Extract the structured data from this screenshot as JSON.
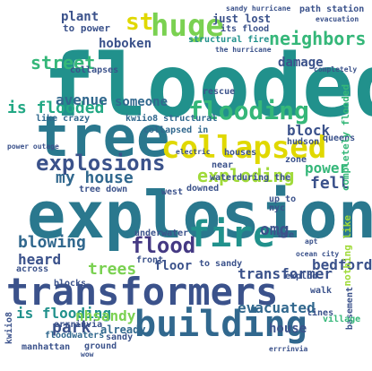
{
  "palette": {
    "dark_purple": "#440154",
    "indigo": "#3b528b",
    "blue": "#31688e",
    "teal": "#21918c",
    "green": "#35b779",
    "lime": "#5ec962",
    "yellow": "#e0e000"
  },
  "words": [
    {
      "text": "flooded",
      "color": "#21918c"
    },
    {
      "text": "tree",
      "color": "#2a788e"
    },
    {
      "text": "explosion",
      "color": "#2a788e"
    },
    {
      "text": "transformers",
      "color": "#3b528b"
    },
    {
      "text": "building",
      "color": "#31688e"
    },
    {
      "text": "fire",
      "color": "#21918c"
    },
    {
      "text": "collapsed",
      "color": "#e0d800"
    },
    {
      "text": "flooding",
      "color": "#35b779"
    },
    {
      "text": "huge",
      "color": "#7ad151"
    },
    {
      "text": "explosions",
      "color": "#3b528b"
    },
    {
      "text": "st",
      "color": "#e0d800"
    },
    {
      "text": "neighbors",
      "color": "#35b779"
    },
    {
      "text": "plant",
      "color": "#3b528b"
    },
    {
      "text": "hoboken",
      "color": "#3b528b"
    },
    {
      "text": "damage",
      "color": "#3b528b"
    },
    {
      "text": "street",
      "color": "#35b779"
    },
    {
      "text": "is flooded",
      "color": "#22a884"
    },
    {
      "text": "avenue",
      "color": "#31688e"
    },
    {
      "text": "someone",
      "color": "#31688e"
    },
    {
      "text": "block",
      "color": "#3b528b"
    },
    {
      "text": "power",
      "color": "#35b779"
    },
    {
      "text": "my house",
      "color": "#31688e"
    },
    {
      "text": "exploding",
      "color": "#a0da39"
    },
    {
      "text": "fell",
      "color": "#3b528b"
    },
    {
      "text": "omg",
      "color": "#3b528b"
    },
    {
      "text": "blowing",
      "color": "#31688e"
    },
    {
      "text": "flood",
      "color": "#443983"
    },
    {
      "text": "heard",
      "color": "#3b528b"
    },
    {
      "text": "trees",
      "color": "#7ad151"
    },
    {
      "text": "floor",
      "color": "#3b528b"
    },
    {
      "text": "transformer",
      "color": "#3b528b"
    },
    {
      "text": "bedford",
      "color": "#3b528b"
    },
    {
      "text": "is flooding",
      "color": "#21918c"
    },
    {
      "text": "park",
      "color": "#3b528b"
    },
    {
      "text": "nhsandy",
      "color": "#7ad151"
    },
    {
      "text": "evacuated",
      "color": "#31688e"
    },
    {
      "text": "house",
      "color": "#3b528b"
    },
    {
      "text": "already",
      "color": "#31688e"
    },
    {
      "text": "just lost",
      "color": "#3b528b"
    },
    {
      "text": "to power",
      "color": "#3b528b"
    },
    {
      "text": "collapses",
      "color": "#3b528b"
    },
    {
      "text": "like crazy",
      "color": "#31688e"
    },
    {
      "text": "kwiio8 structural",
      "color": "#31688e"
    },
    {
      "text": "collapsed in",
      "color": "#31688e"
    },
    {
      "text": "its flood",
      "color": "#3b528b"
    },
    {
      "text": "structural fire",
      "color": "#21918c"
    },
    {
      "text": "path station",
      "color": "#3b528b"
    },
    {
      "text": "queens",
      "color": "#3b528b"
    },
    {
      "text": "completely flooded",
      "color": "#35b779"
    },
    {
      "text": "hudson",
      "color": "#3b528b"
    },
    {
      "text": "nyc",
      "color": "#3b528b"
    },
    {
      "text": "up to",
      "color": "#3b528b"
    },
    {
      "text": "nothing like",
      "color": "#a0da39"
    },
    {
      "text": "basement",
      "color": "#3b528b"
    },
    {
      "text": "village",
      "color": "#35b779"
    },
    {
      "text": "lines",
      "color": "#3b528b"
    },
    {
      "text": "walk",
      "color": "#3b528b"
    },
    {
      "text": "manhattan",
      "color": "#3b528b"
    },
    {
      "text": "floodwaters",
      "color": "#31688e"
    },
    {
      "text": "errrinvia",
      "color": "#3b528b"
    },
    {
      "text": "kwiio8",
      "color": "#3b528b"
    },
    {
      "text": "ground",
      "color": "#3b528b"
    },
    {
      "text": "sandy",
      "color": "#3b528b"
    },
    {
      "text": "ave",
      "color": "#3b528b"
    },
    {
      "text": "west",
      "color": "#3b528b"
    },
    {
      "text": "across",
      "color": "#3b528b"
    },
    {
      "text": "blocks",
      "color": "#3b528b"
    },
    {
      "text": "underwater",
      "color": "#3b528b"
    },
    {
      "text": "near",
      "color": "#3b528b"
    },
    {
      "text": "water",
      "color": "#3b528b"
    },
    {
      "text": "during the",
      "color": "#3b528b"
    },
    {
      "text": "downed",
      "color": "#3b528b"
    },
    {
      "text": "tree down",
      "color": "#3b528b"
    },
    {
      "text": "rescue",
      "color": "#3b528b"
    },
    {
      "text": "zone",
      "color": "#3b528b"
    },
    {
      "text": "houses",
      "color": "#3b528b"
    },
    {
      "text": "front",
      "color": "#3b528b"
    },
    {
      "text": "explod",
      "color": "#3b528b"
    },
    {
      "text": "to sandy",
      "color": "#3b528b"
    },
    {
      "text": "power outage",
      "color": "#3b528b"
    },
    {
      "text": "evacuation",
      "color": "#3b528b"
    },
    {
      "text": "the hurricane",
      "color": "#3b528b"
    },
    {
      "text": "sandy hurricane",
      "color": "#3b528b"
    },
    {
      "text": "errrinvia",
      "color": "#3b528b"
    },
    {
      "text": "wow",
      "color": "#3b528b"
    },
    {
      "text": "electric",
      "color": "#3b528b"
    },
    {
      "text": "completely",
      "color": "#3b528b"
    },
    {
      "text": "ocean city",
      "color": "#3b528b"
    },
    {
      "text": "apt",
      "color": "#3b528b"
    }
  ]
}
